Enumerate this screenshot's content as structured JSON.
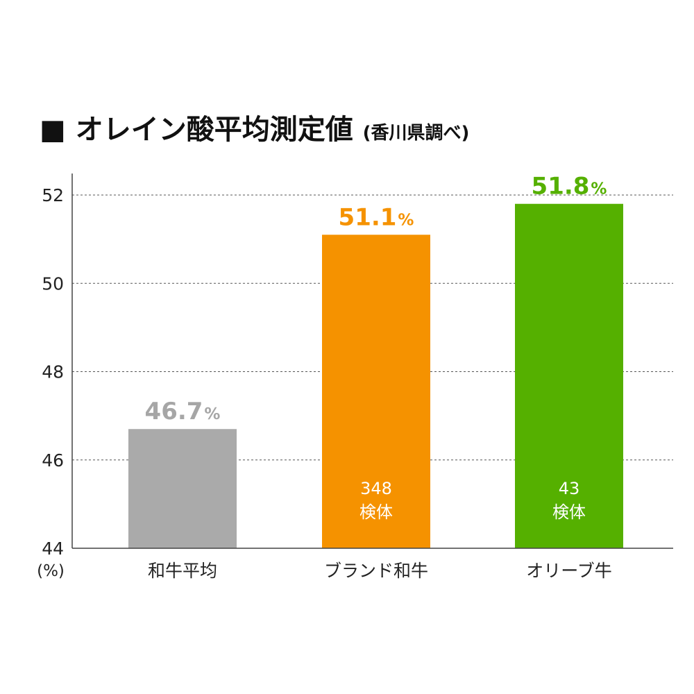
{
  "title": {
    "marker": "■",
    "main": "オレイン酸平均測定値",
    "sub": "(香川県調べ)"
  },
  "chart_data": {
    "type": "bar",
    "categories": [
      "和牛平均",
      "ブランド和牛",
      "オリーブ牛"
    ],
    "values": [
      46.7,
      51.1,
      51.8
    ],
    "value_labels": [
      "46.7",
      "51.1",
      "51.8"
    ],
    "value_unit": "%",
    "colors": [
      "#aaaaaa",
      "#f59200",
      "#55b000"
    ],
    "label_colors": [
      "#a6a6a6",
      "#f59200",
      "#55b000"
    ],
    "bar_notes": [
      null,
      {
        "count": "348",
        "unit": "検体"
      },
      {
        "count": "43",
        "unit": "検体"
      }
    ],
    "ylim": [
      44,
      52
    ],
    "yticks": [
      44,
      46,
      48,
      50,
      52
    ],
    "y_unit": "(%)",
    "grid": true
  }
}
